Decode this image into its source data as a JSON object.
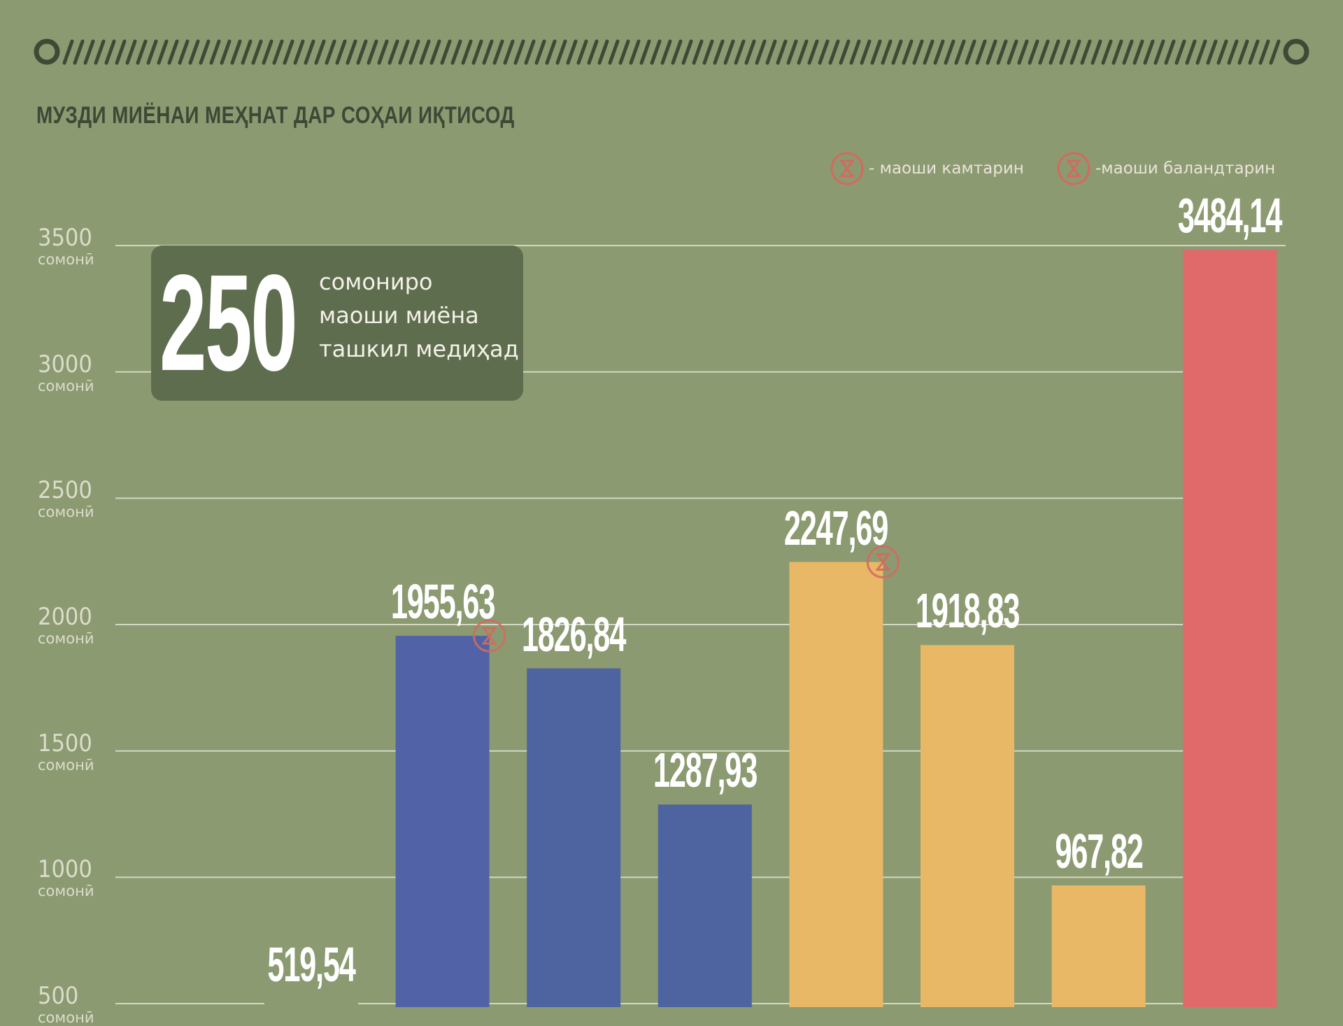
{
  "header": {
    "title": "МУЗДИ МИЁНАИ МЕҲНАТ ДАР СОҲАИ ИҚТИСОД"
  },
  "legend": {
    "min_label": "- маоши камтарин",
    "max_label": "-маоши баландтарин",
    "marker_color": "#d4695f"
  },
  "callout": {
    "number": "250",
    "line1": "сомониро",
    "line2": "маоши миёна",
    "line3": "ташкил медиҳад"
  },
  "chart_data": {
    "type": "bar",
    "title": "МУЗДИ МИЁНАИ МЕҲНАТ ДАР СОҲАИ ИҚТИСОД",
    "ylim": [
      500,
      3500
    ],
    "grid": true,
    "yticks": [
      {
        "value": 3500,
        "label": "3500",
        "unit": "сомонӣ"
      },
      {
        "value": 3000,
        "label": "3000",
        "unit": "сомонӣ"
      },
      {
        "value": 2500,
        "label": "2500",
        "unit": "сомонӣ"
      },
      {
        "value": 2000,
        "label": "2000",
        "unit": "сомонӣ"
      },
      {
        "value": 1500,
        "label": "1500",
        "unit": "сомонӣ"
      },
      {
        "value": 1000,
        "label": "1000",
        "unit": "сомонӣ"
      },
      {
        "value": 500,
        "label": "500",
        "unit": "сомонӣ"
      }
    ],
    "values": [
      519.54,
      1955.63,
      1826.84,
      1287.93,
      2247.69,
      1918.83,
      967.82,
      3484.14
    ],
    "labels": [
      "519,54",
      "1955,63",
      "1826,84",
      "1287,93",
      "2247,69",
      "1918,83",
      "967,82",
      "3484,14"
    ],
    "colors": [
      "#8b9a70",
      "#5163a6",
      "#4e64a0",
      "#4e64a0",
      "#e8b866",
      "#e8b866",
      "#e8b866",
      "#e06a6a"
    ],
    "markers": [
      {
        "bar_index": 1,
        "kind": "min"
      },
      {
        "bar_index": 4,
        "kind": "max"
      }
    ]
  }
}
